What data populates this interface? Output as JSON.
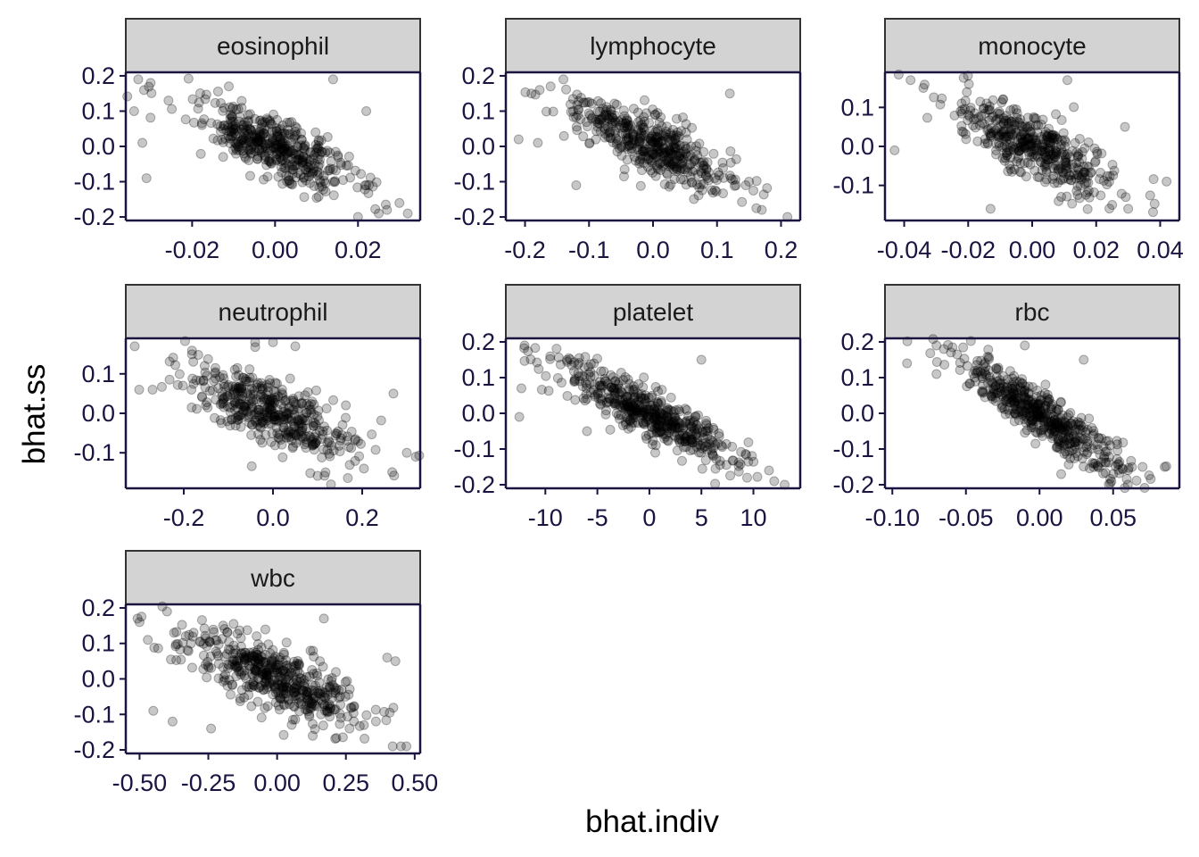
{
  "chart_data": {
    "type": "scatter",
    "facet_type": "facet_wrap",
    "xlabel": "bhat.indiv",
    "ylabel": "bhat.ss",
    "point_color": "#000000",
    "point_alpha": 0.25,
    "strip_fill": "#d3d3d3",
    "panels": [
      {
        "label": "eosinophil",
        "xlim": [
          -0.036,
          0.035
        ],
        "ylim": [
          -0.21,
          0.21
        ],
        "xticks": [
          -0.02,
          0.0,
          0.02
        ],
        "xtick_labels": [
          "-0.02",
          "0.00",
          "0.02"
        ],
        "yticks": [
          -0.2,
          -0.1,
          0.0,
          0.1,
          0.2
        ],
        "ytick_labels": [
          "-0.2",
          "-0.1",
          "0.0",
          "0.1",
          "0.2"
        ],
        "slope": -5.0,
        "sx": 0.009,
        "resid_sd": 0.04,
        "n": 450,
        "outliers": [
          [
            -0.033,
            0.19
          ],
          [
            -0.03,
            0.18
          ],
          [
            -0.034,
            0.1
          ],
          [
            -0.032,
            0.01
          ],
          [
            -0.031,
            -0.09
          ],
          [
            0.014,
            0.19
          ],
          [
            0.022,
            -0.11
          ],
          [
            0.025,
            -0.19
          ],
          [
            0.027,
            -0.18
          ],
          [
            0.032,
            -0.19
          ],
          [
            0.02,
            -0.2
          ],
          [
            0.022,
            0.1
          ]
        ]
      },
      {
        "label": "lymphocyte",
        "xlim": [
          -0.23,
          0.23
        ],
        "ylim": [
          -0.21,
          0.21
        ],
        "xticks": [
          -0.2,
          -0.1,
          0.0,
          0.1,
          0.2
        ],
        "xtick_labels": [
          "-0.2",
          "-0.1",
          "0.0",
          "0.1",
          "0.2"
        ],
        "yticks": [
          -0.2,
          -0.1,
          0.0,
          0.1,
          0.2
        ],
        "ytick_labels": [
          "-0.2",
          "-0.1",
          "0.0",
          "0.1",
          "0.2"
        ],
        "slope": -0.8,
        "sx": 0.055,
        "resid_sd": 0.04,
        "n": 450,
        "outliers": [
          [
            -0.19,
            0.15
          ],
          [
            -0.21,
            0.02
          ],
          [
            -0.18,
            0.01
          ],
          [
            -0.16,
            0.17
          ],
          [
            -0.14,
            0.19
          ],
          [
            0.21,
            -0.2
          ],
          [
            0.17,
            -0.18
          ],
          [
            0.12,
            0.15
          ],
          [
            0.15,
            -0.1
          ],
          [
            -0.12,
            -0.11
          ]
        ]
      },
      {
        "label": "monocyte",
        "xlim": [
          -0.046,
          0.046
        ],
        "ylim": [
          -0.19,
          0.19
        ],
        "xticks": [
          -0.04,
          -0.02,
          0.0,
          0.02,
          0.04
        ],
        "xtick_labels": [
          "-0.04",
          "-0.02",
          "0.00",
          "0.02",
          "0.04"
        ],
        "yticks": [
          -0.1,
          0.0,
          0.1
        ],
        "ytick_labels": [
          "-0.1",
          "0.0",
          "0.1"
        ],
        "slope": -4.0,
        "sx": 0.011,
        "resid_sd": 0.04,
        "n": 450,
        "outliers": [
          [
            -0.038,
            0.17
          ],
          [
            -0.043,
            -0.01
          ],
          [
            -0.034,
            0.15
          ],
          [
            0.042,
            -0.09
          ],
          [
            0.029,
            0.05
          ],
          [
            0.011,
            0.17
          ],
          [
            -0.013,
            -0.16
          ],
          [
            0.03,
            -0.16
          ],
          [
            0.025,
            -0.15
          ]
        ]
      },
      {
        "label": "neutrophil",
        "xlim": [
          -0.33,
          0.33
        ],
        "ylim": [
          -0.19,
          0.19
        ],
        "xticks": [
          -0.2,
          0.0,
          0.2
        ],
        "xtick_labels": [
          "-0.2",
          "0.0",
          "0.2"
        ],
        "yticks": [
          -0.1,
          0.0,
          0.1
        ],
        "ytick_labels": [
          "-0.1",
          "0.0",
          "0.1"
        ],
        "slope": -0.45,
        "sx": 0.08,
        "resid_sd": 0.045,
        "n": 450,
        "outliers": [
          [
            -0.31,
            0.17
          ],
          [
            -0.3,
            0.06
          ],
          [
            -0.27,
            0.06
          ],
          [
            0.3,
            -0.1
          ],
          [
            0.32,
            -0.11
          ],
          [
            0.27,
            0.05
          ],
          [
            0.0,
            0.18
          ],
          [
            0.05,
            0.17
          ],
          [
            0.13,
            -0.18
          ],
          [
            -0.04,
            0.18
          ]
        ]
      },
      {
        "label": "platelet",
        "xlim": [
          -13.8,
          14.5
        ],
        "ylim": [
          -0.21,
          0.21
        ],
        "xticks": [
          -10,
          -5,
          0,
          5,
          10
        ],
        "xtick_labels": [
          "-10",
          "-5",
          "0",
          "5",
          "10"
        ],
        "yticks": [
          -0.2,
          -0.1,
          0.0,
          0.1,
          0.2
        ],
        "ytick_labels": [
          "-0.2",
          "-0.1",
          "0.0",
          "0.1",
          "0.2"
        ],
        "slope": -0.0145,
        "sx": 3.8,
        "resid_sd": 0.035,
        "n": 500,
        "outliers": [
          [
            -12,
            0.19
          ],
          [
            -12.5,
            -0.01
          ],
          [
            -12.3,
            0.07
          ],
          [
            13,
            -0.2
          ],
          [
            12,
            -0.19
          ],
          [
            11.5,
            -0.16
          ],
          [
            -6,
            -0.05
          ],
          [
            5,
            0.15
          ]
        ]
      },
      {
        "label": "rbc",
        "xlim": [
          -0.105,
          0.095
        ],
        "ylim": [
          -0.21,
          0.21
        ],
        "xticks": [
          -0.1,
          -0.05,
          0.0,
          0.05
        ],
        "xtick_labels": [
          "-0.10",
          "-0.05",
          "0.00",
          "0.05"
        ],
        "yticks": [
          -0.2,
          -0.1,
          0.0,
          0.1,
          0.2
        ],
        "ytick_labels": [
          "-0.2",
          "-0.1",
          "0.0",
          "0.1",
          "0.2"
        ],
        "slope": -2.6,
        "sx": 0.025,
        "resid_sd": 0.035,
        "n": 500,
        "outliers": [
          [
            -0.09,
            0.14
          ],
          [
            -0.07,
            0.19
          ],
          [
            -0.065,
            0.18
          ],
          [
            -0.07,
            0.11
          ],
          [
            0.085,
            -0.15
          ],
          [
            0.07,
            -0.15
          ],
          [
            0.06,
            -0.2
          ],
          [
            -0.01,
            0.19
          ],
          [
            0.03,
            0.15
          ],
          [
            0.05,
            -0.17
          ]
        ]
      },
      {
        "label": "wbc",
        "xlim": [
          -0.55,
          0.52
        ],
        "ylim": [
          -0.21,
          0.21
        ],
        "xticks": [
          -0.5,
          -0.25,
          0.0,
          0.25,
          0.5
        ],
        "xtick_labels": [
          "-0.50",
          "-0.25",
          "0.00",
          "0.25",
          "0.50"
        ],
        "yticks": [
          -0.2,
          -0.1,
          0.0,
          0.1,
          0.2
        ],
        "ytick_labels": [
          "-0.2",
          "-0.1",
          "0.0",
          "0.1",
          "0.2"
        ],
        "slope": -0.32,
        "sx": 0.14,
        "resid_sd": 0.045,
        "n": 500,
        "outliers": [
          [
            -0.5,
            0.16
          ],
          [
            -0.47,
            0.11
          ],
          [
            -0.4,
            0.19
          ],
          [
            -0.45,
            -0.09
          ],
          [
            -0.38,
            -0.12
          ],
          [
            0.45,
            -0.19
          ],
          [
            0.47,
            -0.19
          ],
          [
            0.42,
            -0.19
          ],
          [
            0.4,
            0.06
          ],
          [
            0.43,
            0.05
          ],
          [
            -0.24,
            -0.14
          ],
          [
            0.17,
            0.17
          ]
        ]
      }
    ]
  }
}
